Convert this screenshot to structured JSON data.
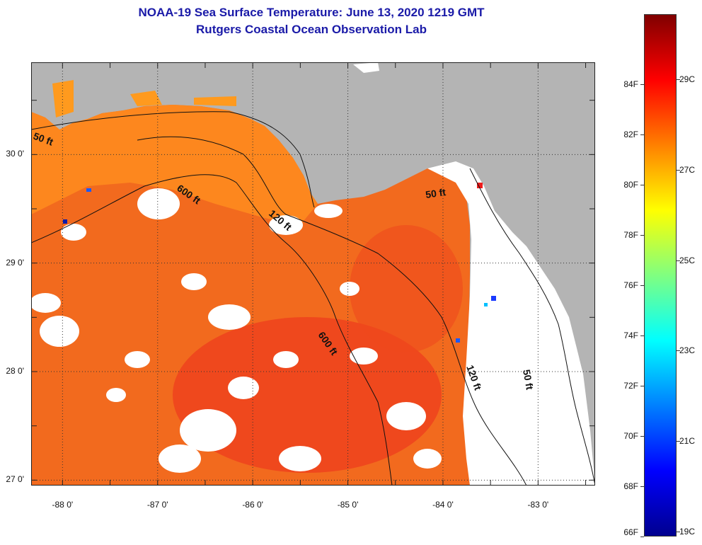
{
  "title": {
    "line1": "NOAA-19 Sea Surface Temperature:  June 13, 2020 1219 GMT",
    "line2": "Rutgers Coastal Ocean Observation Lab"
  },
  "map": {
    "lat_ticks": [
      "30 0'",
      "29 0'",
      "28 0'",
      "27 0'"
    ],
    "lon_ticks": [
      "-88 0'",
      "-87 0'",
      "-86 0'",
      "-85 0'",
      "-84 0'",
      "-83 0'"
    ],
    "lat_range": [
      26.95,
      30.85
    ],
    "lon_range": [
      -88.33,
      -82.4
    ],
    "contours": [
      {
        "label": "50 ft",
        "where": "northwest"
      },
      {
        "label": "600 ft",
        "where": "north-central"
      },
      {
        "label": "120 ft",
        "where": "north-central"
      },
      {
        "label": "50 ft",
        "where": "northeast"
      },
      {
        "label": "600 ft",
        "where": "central"
      },
      {
        "label": "120 ft",
        "where": "east"
      },
      {
        "label": "50 ft",
        "where": "east"
      }
    ],
    "colors": {
      "land": "#b4b4b4",
      "cloud": "#ffffff",
      "ocean_warm": "#f26a1e",
      "ocean_hot": "#ee3b1c",
      "ocean_cool": "#ff9a1e",
      "contour": "#111111"
    }
  },
  "colorbar": {
    "fahrenheit": [
      "84F",
      "82F",
      "80F",
      "78F",
      "76F",
      "74F",
      "72F",
      "70F",
      "68F",
      "66F"
    ],
    "celsius": [
      "29C",
      "27C",
      "25C",
      "23C",
      "21C",
      "19C"
    ],
    "colors": [
      "#00008f",
      "#0000ff",
      "#0080ff",
      "#00ffff",
      "#80ff80",
      "#ffff00",
      "#ff8000",
      "#ff0000",
      "#800000"
    ]
  }
}
